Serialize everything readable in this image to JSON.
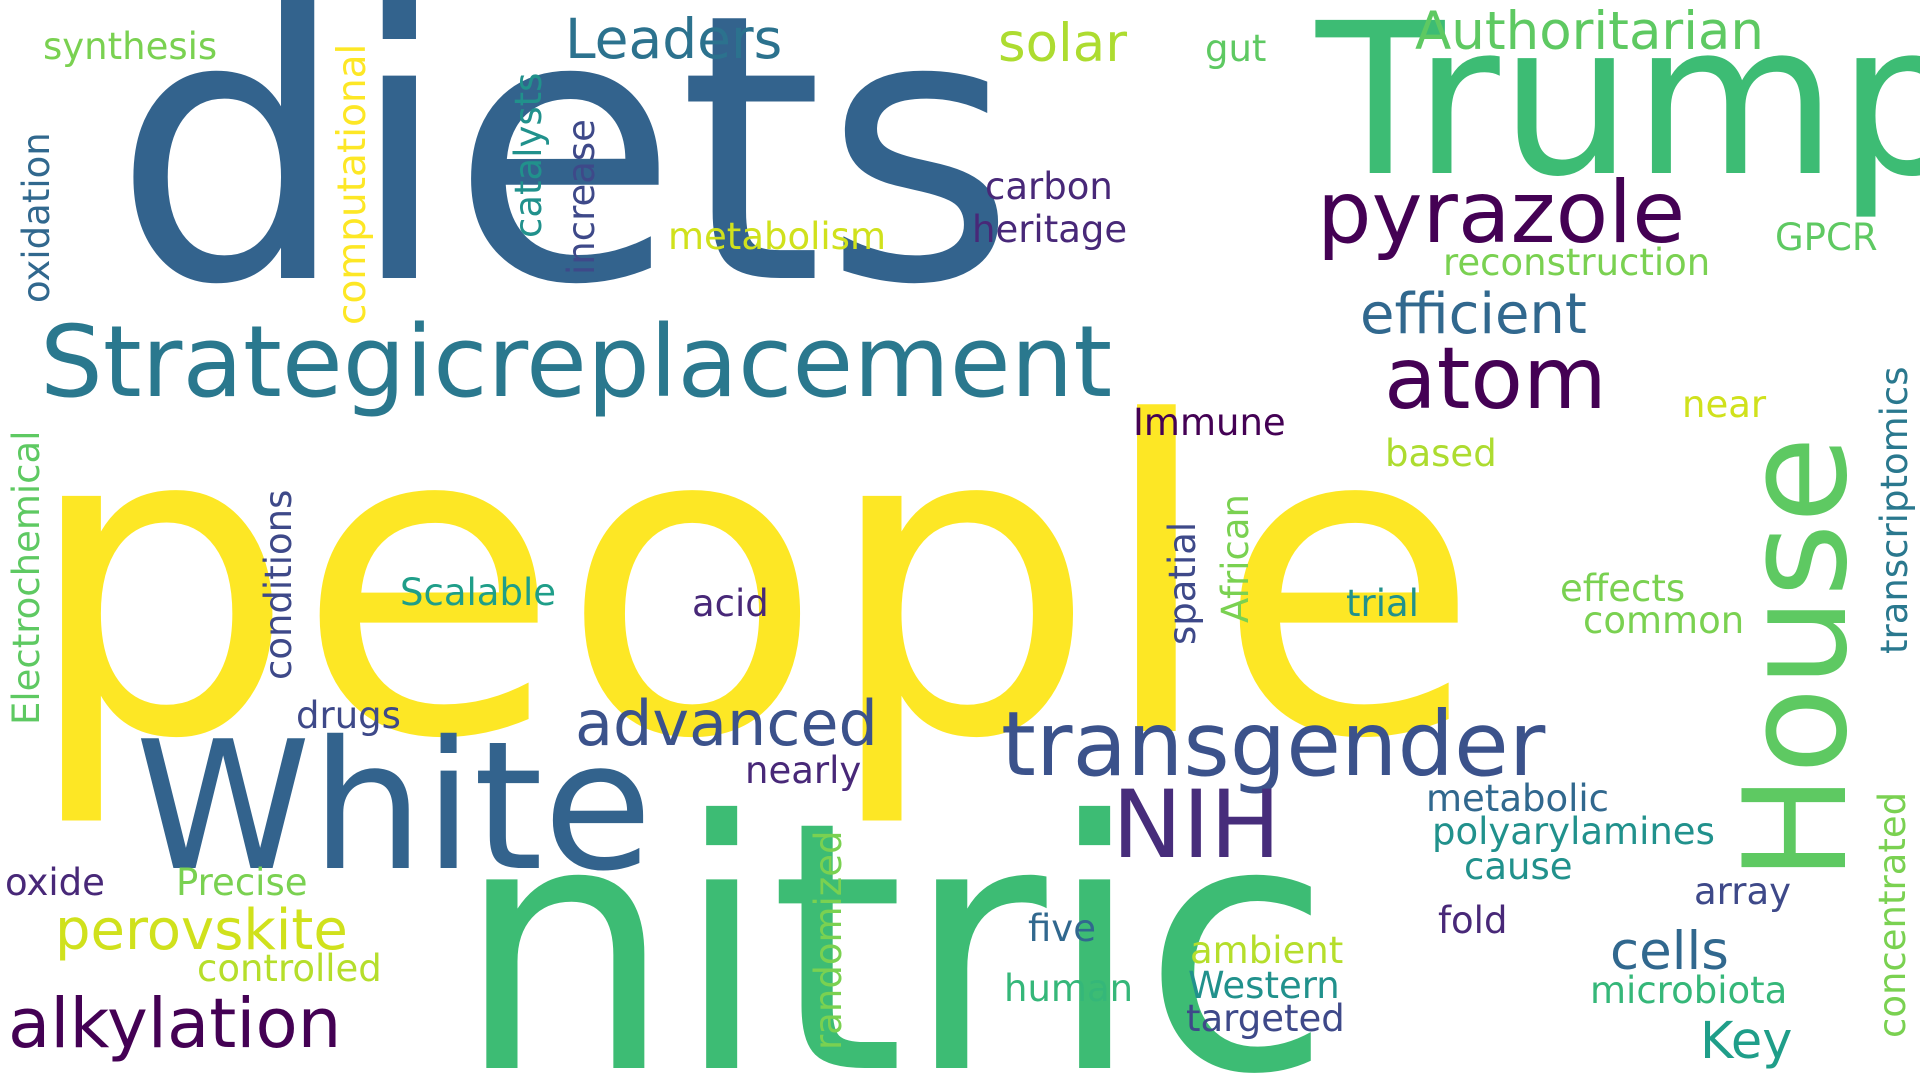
{
  "words": [
    {
      "text": "diets",
      "color": "#33638d"
    },
    {
      "text": "people",
      "color": "#fde725"
    },
    {
      "text": "nitric",
      "color": "#3dbc74"
    },
    {
      "text": "Trump",
      "color": "#3dbc74"
    },
    {
      "text": "White",
      "color": "#33638d"
    },
    {
      "text": "House",
      "color": "#5ec962"
    },
    {
      "text": "Strategicreplacement",
      "color": "#2a788e"
    },
    {
      "text": "transgender",
      "color": "#3b528b"
    },
    {
      "text": "pyrazole",
      "color": "#440154"
    },
    {
      "text": "atom",
      "color": "#440154"
    },
    {
      "text": "NIH",
      "color": "#472d7b"
    },
    {
      "text": "alkylation",
      "color": "#440154"
    },
    {
      "text": "advanced",
      "color": "#3b528b"
    },
    {
      "text": "perovskite",
      "color": "#d0e11c"
    },
    {
      "text": "efficient",
      "color": "#31688e"
    },
    {
      "text": "Authoritarian",
      "color": "#5ec962"
    },
    {
      "text": "Leaders",
      "color": "#2c728e"
    },
    {
      "text": "solar",
      "color": "#addc30"
    },
    {
      "text": "cells",
      "color": "#31688e"
    },
    {
      "text": "Key",
      "color": "#1f9e89"
    },
    {
      "text": "synthesis",
      "color": "#7ad151"
    },
    {
      "text": "gut",
      "color": "#5ec962"
    },
    {
      "text": "computational",
      "color": "#fde725"
    },
    {
      "text": "catalysts",
      "color": "#21918c"
    },
    {
      "text": "increase",
      "color": "#3e4989"
    },
    {
      "text": "oxidation",
      "color": "#31688e"
    },
    {
      "text": "metabolism",
      "color": "#d0e11c"
    },
    {
      "text": "carbon",
      "color": "#482878"
    },
    {
      "text": "heritage",
      "color": "#482878"
    },
    {
      "text": "GPCR",
      "color": "#5ec962"
    },
    {
      "text": "reconstruction",
      "color": "#7ad151"
    },
    {
      "text": "transcriptomics",
      "color": "#2a788e"
    },
    {
      "text": "Immune",
      "color": "#440154"
    },
    {
      "text": "near",
      "color": "#d0e11c"
    },
    {
      "text": "based",
      "color": "#addc30"
    },
    {
      "text": "Electrochemical",
      "color": "#5ec962"
    },
    {
      "text": "conditions",
      "color": "#3e4989"
    },
    {
      "text": "spatial",
      "color": "#3e4989"
    },
    {
      "text": "African",
      "color": "#7ad151"
    },
    {
      "text": "Scalable",
      "color": "#1f9e89"
    },
    {
      "text": "acid",
      "color": "#482878"
    },
    {
      "text": "trial",
      "color": "#21918c"
    },
    {
      "text": "effects",
      "color": "#7ad151"
    },
    {
      "text": "common",
      "color": "#7ad151"
    },
    {
      "text": "drugs",
      "color": "#3e4989"
    },
    {
      "text": "nearly",
      "color": "#482878"
    },
    {
      "text": "metabolic",
      "color": "#31688e"
    },
    {
      "text": "polyarylamines",
      "color": "#21918c"
    },
    {
      "text": "cause",
      "color": "#21918c"
    },
    {
      "text": "concentrated",
      "color": "#7ad151"
    },
    {
      "text": "randomized",
      "color": "#7ad151"
    },
    {
      "text": "oxide",
      "color": "#482878"
    },
    {
      "text": "Precise",
      "color": "#7ad151"
    },
    {
      "text": "controlled",
      "color": "#b5de2b"
    },
    {
      "text": "five",
      "color": "#31688e"
    },
    {
      "text": "fold",
      "color": "#482878"
    },
    {
      "text": "array",
      "color": "#3e4989"
    },
    {
      "text": "ambient",
      "color": "#b5de2b"
    },
    {
      "text": "Western",
      "color": "#21918c"
    },
    {
      "text": "human",
      "color": "#35b779"
    },
    {
      "text": "targeted",
      "color": "#3e4989"
    },
    {
      "text": "microbiota",
      "color": "#35b779"
    }
  ]
}
